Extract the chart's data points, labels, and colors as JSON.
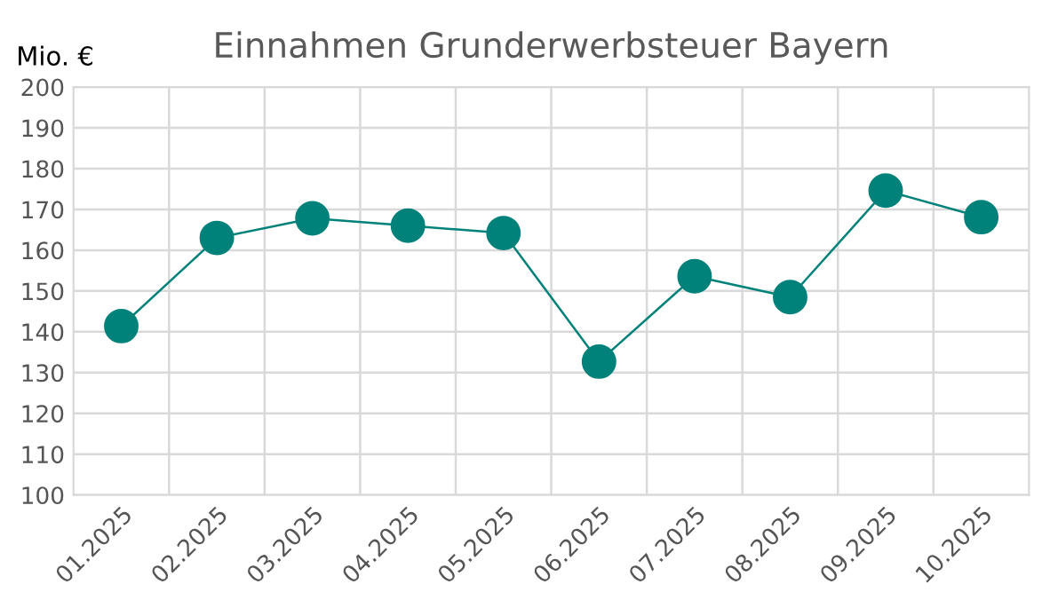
{
  "chart_data": {
    "type": "line",
    "title": "Einnahmen Grunderwerbsteuer Bayern",
    "ylabel": "Mio. €",
    "categories": [
      "01.2025",
      "02.2025",
      "03.2025",
      "04.2025",
      "05.2025",
      "06.2025",
      "07.2025",
      "08.2025",
      "09.2025",
      "10.2025"
    ],
    "series": [
      {
        "color": "#00827a",
        "values": [
          141.4,
          163.0,
          167.8,
          166.0,
          164.2,
          132.7,
          153.6,
          148.5,
          174.6,
          168.1
        ]
      }
    ],
    "ylim": [
      100,
      200
    ],
    "yticks": [
      100,
      110,
      120,
      130,
      140,
      150,
      160,
      170,
      180,
      190,
      200
    ],
    "grid": true,
    "marker": "circle",
    "line_style": "solid",
    "legend": false
  }
}
